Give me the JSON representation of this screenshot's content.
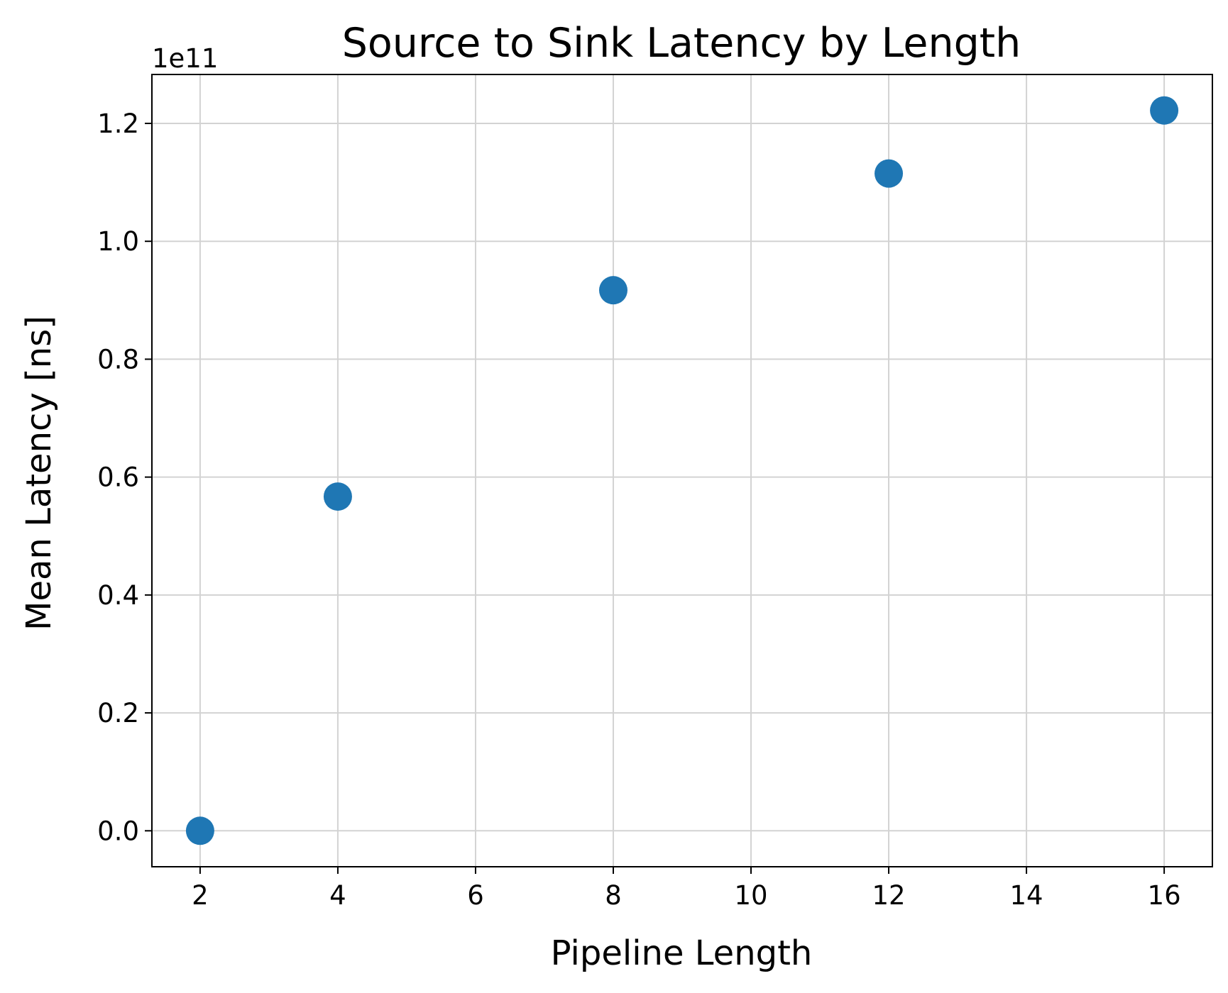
{
  "chart_data": {
    "type": "scatter",
    "title": "Source to Sink Latency by Length",
    "xlabel": "Pipeline Length",
    "ylabel": "Mean Latency [ns]",
    "y_offset_label": "1e11",
    "y_scale_factor": 100000000000.0,
    "xlim": [
      1.3,
      16.7
    ],
    "ylim": [
      -6100000000.0,
      128300000000.0
    ],
    "grid": true,
    "x_ticks": [
      2,
      4,
      6,
      8,
      10,
      12,
      14,
      16
    ],
    "x_tick_labels": [
      "2",
      "4",
      "6",
      "8",
      "10",
      "12",
      "14",
      "16"
    ],
    "y_ticks": [
      0,
      20000000000.0,
      40000000000.0,
      60000000000.0,
      80000000000.0,
      100000000000.0,
      120000000000.0
    ],
    "y_tick_labels": [
      "0.0",
      "0.2",
      "0.4",
      "0.6",
      "0.8",
      "1.0",
      "1.2"
    ],
    "series": [
      {
        "x": [
          2,
          4,
          8,
          12,
          16
        ],
        "y": [
          0,
          56700000000.0,
          91700000000.0,
          111500000000.0,
          122200000000.0
        ],
        "color": "#1f77b4"
      }
    ]
  }
}
